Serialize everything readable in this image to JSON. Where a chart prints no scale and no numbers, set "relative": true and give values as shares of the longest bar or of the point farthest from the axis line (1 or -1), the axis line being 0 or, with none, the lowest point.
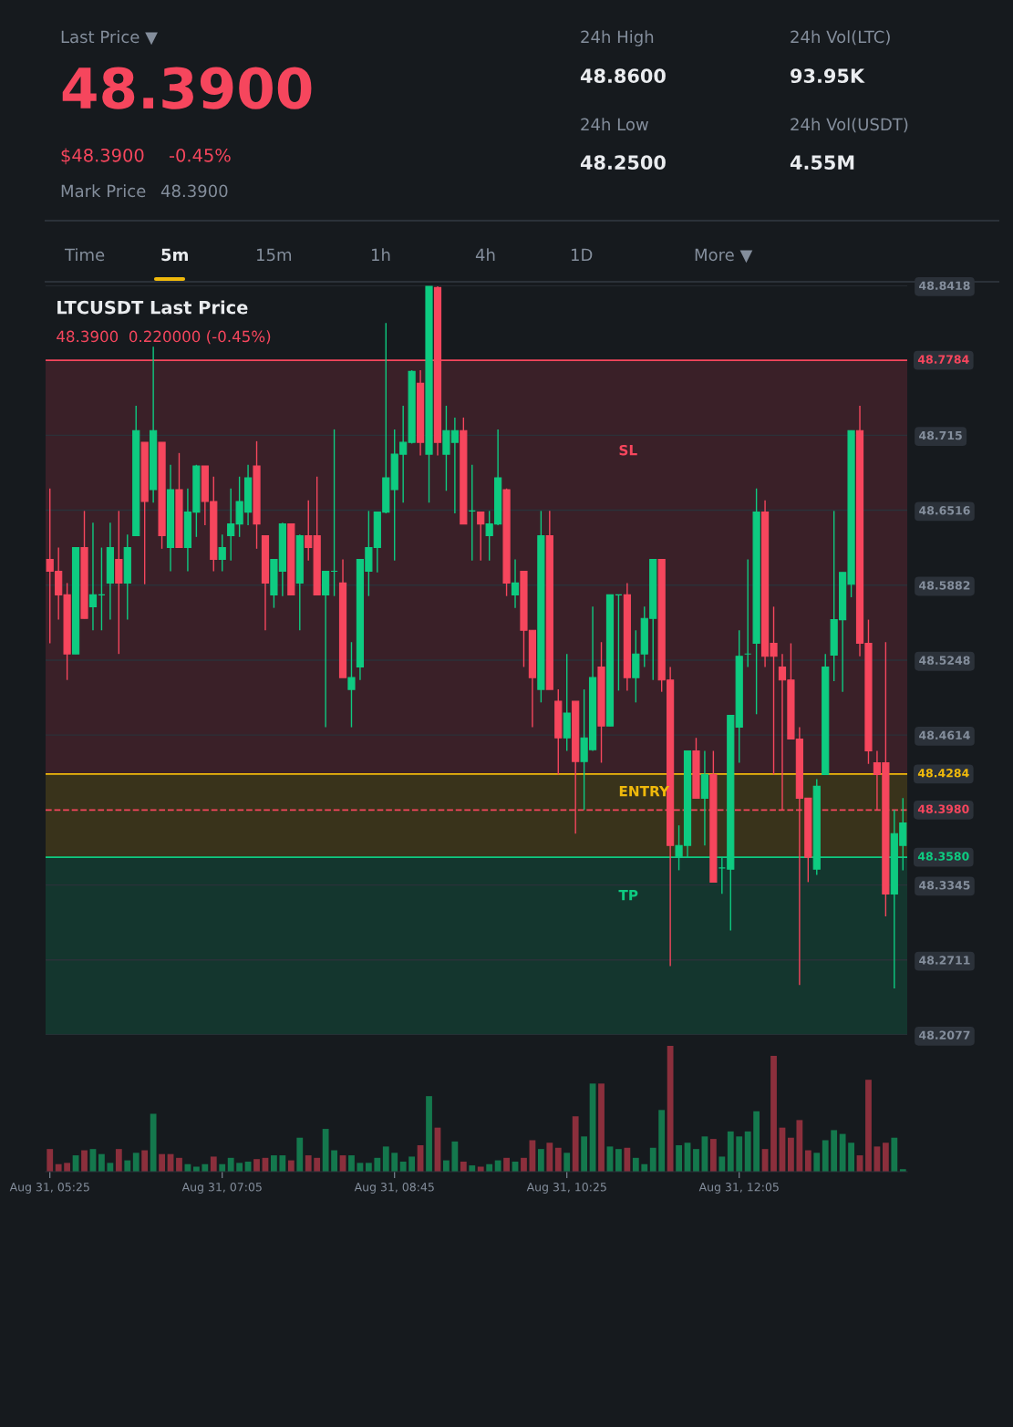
{
  "chart_data": [
    {
      "type": "other",
      "annotations": [
        "Last Price ▼",
        "48.3900",
        "$48.3900",
        "-0.45%",
        "Mark Price",
        "48.3900",
        "24h High",
        "48.8600",
        "24h Low",
        "48.2500",
        "24h Vol(LTC)",
        "93.95K",
        "24h Vol(USDT)",
        "4.55M",
        "Time",
        "5m",
        "15m",
        "1h",
        "4h",
        "1D",
        "More ▼"
      ]
    },
    {
      "type": "candlestick",
      "title": "LTCUSDT Last Price",
      "subtitle": "48.3900  0.220000 (-0.45%)",
      "tick_labels": "y",
      "grid": "y",
      "colors": [
        "#f6465d",
        "#f6465d",
        "#f6465d",
        "#0ecb81",
        "#f6465d",
        "#0ecb81",
        "#0ecb81",
        "#0ecb81",
        "#f6465d",
        "#0ecb81",
        "#0ecb81",
        "#f6465d",
        "#0ecb81",
        "#f6465d",
        "#0ecb81",
        "#f6465d",
        "#0ecb81",
        "#0ecb81",
        "#f6465d",
        "#f6465d",
        "#0ecb81",
        "#0ecb81",
        "#0ecb81",
        "#0ecb81",
        "#f6465d",
        "#f6465d",
        "#0ecb81",
        "#0ecb81",
        "#f6465d",
        "#0ecb81",
        "#f6465d",
        "#f6465d",
        "#0ecb81",
        "#0ecb81",
        "#f6465d",
        "#0ecb81",
        "#0ecb81",
        "#0ecb81",
        "#0ecb81",
        "#0ecb81",
        "#0ecb81",
        "#0ecb81",
        "#0ecb81",
        "#f6465d",
        "#0ecb81",
        "#f6465d",
        "#0ecb81",
        "#0ecb81",
        "#f6465d",
        "#0ecb81",
        "#f6465d",
        "#0ecb81",
        "#0ecb81",
        "#f6465d",
        "#0ecb81",
        "#f6465d",
        "#f6465d",
        "#0ecb81",
        "#f6465d",
        "#f6465d",
        "#0ecb81",
        "#f6465d",
        "#0ecb81",
        "#0ecb81",
        "#f6465d",
        "#0ecb81",
        "#0ecb81",
        "#f6465d",
        "#0ecb81",
        "#0ecb81",
        "#0ecb81",
        "#f6465d",
        "#f6465d",
        "#0ecb81",
        "#0ecb81",
        "#f6465d",
        "#0ecb81",
        "#f6465d",
        "#0ecb81",
        "#0ecb81",
        "#0ecb81",
        "#0ecb81",
        "#0ecb81",
        "#f6465d",
        "#f6465d",
        "#f6465d",
        "#f6465d",
        "#f6465d",
        "#f6465d",
        "#0ecb81",
        "#0ecb81",
        "#0ecb81",
        "#0ecb81",
        "#0ecb81",
        "#f6465d",
        "#f6465d",
        "#f6465d",
        "#f6465d",
        "#0ecb81",
        "#0ecb81"
      ],
      "ylim": [
        48.2077,
        48.8418
      ],
      "yticks": [
        48.8418,
        48.715,
        48.6516,
        48.5882,
        48.5248,
        48.4614,
        48.3345,
        48.2711,
        48.2077
      ],
      "categories": [
        null,
        null,
        null,
        null,
        null,
        null,
        null,
        null,
        null,
        null,
        null,
        null,
        null,
        null,
        null,
        null,
        null,
        null,
        null,
        null,
        null,
        null,
        null,
        null,
        null,
        null,
        null,
        null,
        null,
        null,
        null,
        null,
        null,
        null,
        null,
        null,
        null,
        null,
        null,
        null,
        null,
        null,
        null,
        null,
        null,
        null,
        null,
        null,
        null,
        null,
        null,
        null,
        null,
        null,
        null,
        null,
        null,
        null,
        null,
        null,
        null,
        null,
        null,
        null,
        null,
        null,
        null,
        null,
        null,
        null,
        null,
        null,
        null,
        null,
        null,
        null,
        null,
        null,
        null,
        null,
        null,
        null,
        null,
        null,
        null,
        null,
        null,
        null,
        null,
        null,
        null,
        null,
        null,
        null,
        null,
        null,
        null,
        null,
        null,
        null
      ],
      "ohlc": [
        [
          48.61,
          48.67,
          48.539,
          48.6
        ],
        [
          48.6,
          48.62,
          48.559,
          48.58
        ],
        [
          48.58,
          48.59,
          48.508,
          48.53
        ],
        [
          48.53,
          48.62,
          48.53,
          48.62
        ],
        [
          48.62,
          48.651,
          48.56,
          48.56
        ],
        [
          48.57,
          48.641,
          48.55,
          48.58
        ],
        [
          48.58,
          48.62,
          48.55,
          48.58
        ],
        [
          48.59,
          48.641,
          48.559,
          48.62
        ],
        [
          48.61,
          48.651,
          48.53,
          48.59
        ],
        [
          48.59,
          48.631,
          48.559,
          48.62
        ],
        [
          48.63,
          48.74,
          48.63,
          48.719
        ],
        [
          48.709,
          48.709,
          48.589,
          48.659
        ],
        [
          48.669,
          48.79,
          48.658,
          48.719
        ],
        [
          48.709,
          48.709,
          48.619,
          48.63
        ],
        [
          48.62,
          48.69,
          48.6,
          48.669
        ],
        [
          48.669,
          48.7,
          48.62,
          48.62
        ],
        [
          48.62,
          48.67,
          48.6,
          48.65
        ],
        [
          48.65,
          48.69,
          48.629,
          48.689
        ],
        [
          48.689,
          48.689,
          48.639,
          48.659
        ],
        [
          48.659,
          48.68,
          48.6,
          48.61
        ],
        [
          48.61,
          48.631,
          48.6,
          48.62
        ],
        [
          48.63,
          48.67,
          48.609,
          48.64
        ],
        [
          48.64,
          48.68,
          48.629,
          48.659
        ],
        [
          48.65,
          48.69,
          48.639,
          48.679
        ],
        [
          48.689,
          48.71,
          48.619,
          48.64
        ],
        [
          48.63,
          48.63,
          48.55,
          48.59
        ],
        [
          48.58,
          48.61,
          48.569,
          48.61
        ],
        [
          48.6,
          48.641,
          48.579,
          48.64
        ],
        [
          48.64,
          48.64,
          48.58,
          48.58
        ],
        [
          48.59,
          48.631,
          48.55,
          48.63
        ],
        [
          48.63,
          48.66,
          48.609,
          48.62
        ],
        [
          48.63,
          48.68,
          48.58,
          48.58
        ],
        [
          48.58,
          48.6,
          48.468,
          48.6
        ],
        [
          48.6,
          48.72,
          48.579,
          48.6
        ],
        [
          48.59,
          48.61,
          48.51,
          48.51
        ],
        [
          48.5,
          48.54,
          48.468,
          48.51
        ],
        [
          48.519,
          48.61,
          48.508,
          48.61
        ],
        [
          48.6,
          48.651,
          48.579,
          48.62
        ],
        [
          48.62,
          48.65,
          48.599,
          48.65
        ],
        [
          48.65,
          48.81,
          48.649,
          48.679
        ],
        [
          48.669,
          48.72,
          48.609,
          48.699
        ],
        [
          48.699,
          48.74,
          48.658,
          48.709
        ],
        [
          48.709,
          48.77,
          48.708,
          48.769
        ],
        [
          48.759,
          48.77,
          48.698,
          48.709
        ],
        [
          48.699,
          48.841,
          48.658,
          48.841
        ],
        [
          48.84,
          48.841,
          48.698,
          48.709
        ],
        [
          48.699,
          48.74,
          48.668,
          48.719
        ],
        [
          48.709,
          48.73,
          48.649,
          48.719
        ],
        [
          48.719,
          48.73,
          48.64,
          48.64
        ],
        [
          48.651,
          48.69,
          48.609,
          48.651
        ],
        [
          48.65,
          48.65,
          48.609,
          48.64
        ],
        [
          48.63,
          48.651,
          48.609,
          48.64
        ],
        [
          48.64,
          48.72,
          48.639,
          48.679
        ],
        [
          48.669,
          48.67,
          48.579,
          48.59
        ],
        [
          48.58,
          48.61,
          48.569,
          48.59
        ],
        [
          48.6,
          48.6,
          48.519,
          48.55
        ],
        [
          48.55,
          48.55,
          48.468,
          48.51
        ],
        [
          48.5,
          48.651,
          48.489,
          48.63
        ],
        [
          48.63,
          48.651,
          48.5,
          48.5
        ],
        [
          48.49,
          48.5,
          48.428,
          48.459
        ],
        [
          48.459,
          48.53,
          48.448,
          48.48
        ],
        [
          48.49,
          48.49,
          48.378,
          48.439
        ],
        [
          48.439,
          48.5,
          48.398,
          48.459
        ],
        [
          48.449,
          48.57,
          48.448,
          48.51
        ],
        [
          48.519,
          48.54,
          48.438,
          48.469
        ],
        [
          48.469,
          48.58,
          48.469,
          48.58
        ],
        [
          48.58,
          48.58,
          48.499,
          48.58
        ],
        [
          48.58,
          48.59,
          48.499,
          48.51
        ],
        [
          48.51,
          48.55,
          48.489,
          48.53
        ],
        [
          48.53,
          48.57,
          48.519,
          48.56
        ],
        [
          48.56,
          48.61,
          48.508,
          48.61
        ],
        [
          48.61,
          48.61,
          48.498,
          48.508
        ],
        [
          48.508,
          48.519,
          48.266,
          48.368
        ],
        [
          48.358,
          48.385,
          48.347,
          48.368
        ],
        [
          48.368,
          48.448,
          48.358,
          48.448
        ],
        [
          48.448,
          48.459,
          48.408,
          48.408
        ],
        [
          48.408,
          48.448,
          48.368,
          48.428
        ],
        [
          48.428,
          48.448,
          48.337,
          48.337
        ],
        [
          48.349,
          48.358,
          48.327,
          48.349
        ],
        [
          48.348,
          48.478,
          48.296,
          48.478
        ],
        [
          48.468,
          48.55,
          48.438,
          48.528
        ],
        [
          48.53,
          48.61,
          48.519,
          48.53
        ],
        [
          48.539,
          48.67,
          48.479,
          48.65
        ],
        [
          48.65,
          48.66,
          48.519,
          48.528
        ],
        [
          48.539,
          48.57,
          48.428,
          48.528
        ],
        [
          48.519,
          48.53,
          48.398,
          48.508
        ],
        [
          48.508,
          48.539,
          48.458,
          48.458
        ],
        [
          48.458,
          48.468,
          48.25,
          48.408
        ],
        [
          48.408,
          48.408,
          48.337,
          48.358
        ],
        [
          48.348,
          48.424,
          48.343,
          48.418
        ],
        [
          48.428,
          48.53,
          48.428,
          48.519
        ],
        [
          48.529,
          48.651,
          48.507,
          48.559
        ],
        [
          48.559,
          48.599,
          48.498,
          48.599
        ],
        [
          48.589,
          48.719,
          48.578,
          48.719
        ],
        [
          48.719,
          48.74,
          48.528,
          48.539
        ],
        [
          48.539,
          48.559,
          48.437,
          48.448
        ],
        [
          48.438,
          48.448,
          48.398,
          48.428
        ],
        [
          48.438,
          48.54,
          48.308,
          48.327
        ],
        [
          48.327,
          48.398,
          48.247,
          48.378
        ],
        [
          48.368,
          48.408,
          48.347,
          48.387
        ]
      ],
      "bands": [
        {
          "axis": "y",
          "from": 48.4284,
          "to": 48.7784,
          "label": "SL",
          "color": "#f6465d"
        },
        {
          "axis": "y",
          "from": 48.358,
          "to": 48.4284,
          "label": "ENTRY",
          "color": "#f0b90b"
        },
        {
          "axis": "y",
          "from": 48.2077,
          "to": 48.358,
          "label": "TP",
          "color": "#0ecb81"
        }
      ],
      "ref_lines": [
        {
          "axis": "y",
          "value": 48.7784,
          "label": "48.7784",
          "color": "#f6465d",
          "line_style": "solid"
        },
        {
          "axis": "y",
          "value": 48.4284,
          "label": "48.4284",
          "color": "#f0b90b",
          "line_style": "solid"
        },
        {
          "axis": "y",
          "value": 48.358,
          "label": "48.3580",
          "color": "#0ecb81",
          "line_style": "solid"
        },
        {
          "axis": "y",
          "value": 48.398,
          "label": "48.3980",
          "color": "#f6465d",
          "line_style": "dashed"
        }
      ]
    },
    {
      "type": "bar",
      "relative": true,
      "tick_labels": "x",
      "categories": [
        "Aug 31, 05:25",
        null,
        null,
        null,
        null,
        null,
        null,
        null,
        null,
        null,
        null,
        null,
        null,
        null,
        null,
        null,
        null,
        null,
        null,
        null,
        "Aug 31, 07:05",
        null,
        null,
        null,
        null,
        null,
        null,
        null,
        null,
        null,
        null,
        null,
        null,
        null,
        null,
        null,
        null,
        null,
        null,
        null,
        "Aug 31, 08:45",
        null,
        null,
        null,
        null,
        null,
        null,
        null,
        null,
        null,
        null,
        null,
        null,
        null,
        null,
        null,
        null,
        null,
        null,
        null,
        "Aug 31, 10:25",
        null,
        null,
        null,
        null,
        null,
        null,
        null,
        null,
        null,
        null,
        null,
        null,
        null,
        null,
        null,
        null,
        null,
        null,
        null,
        "Aug 31, 12:05",
        null,
        null,
        null,
        null,
        null,
        null,
        null,
        null,
        null,
        null,
        null,
        null,
        null,
        null,
        null,
        null,
        null,
        null,
        null
      ],
      "values": [
        0.18,
        0.06,
        0.07,
        0.13,
        0.17,
        0.18,
        0.14,
        0.07,
        0.18,
        0.09,
        0.15,
        0.17,
        0.46,
        0.14,
        0.14,
        0.11,
        0.06,
        0.04,
        0.06,
        0.12,
        0.06,
        0.11,
        0.07,
        0.08,
        0.1,
        0.11,
        0.13,
        0.13,
        0.09,
        0.27,
        0.13,
        0.11,
        0.34,
        0.17,
        0.13,
        0.13,
        0.07,
        0.07,
        0.11,
        0.2,
        0.15,
        0.08,
        0.12,
        0.21,
        0.6,
        0.35,
        0.09,
        0.24,
        0.08,
        0.05,
        0.04,
        0.06,
        0.09,
        0.11,
        0.08,
        0.11,
        0.25,
        0.18,
        0.23,
        0.19,
        0.15,
        0.44,
        0.28,
        0.7,
        0.7,
        0.2,
        0.18,
        0.19,
        0.11,
        0.06,
        0.19,
        0.49,
        1,
        0.21,
        0.23,
        0.18,
        0.28,
        0.26,
        0.12,
        0.32,
        0.28,
        0.32,
        0.48,
        0.18,
        0.92,
        0.35,
        0.27,
        0.41,
        0.17,
        0.15,
        0.25,
        0.33,
        0.3,
        0.23,
        0.13,
        0.73,
        0.2,
        0.23,
        0.27,
        0.02
      ],
      "colors": [
        "#8b2f3c",
        "#8b2f3c",
        "#8b2f3c",
        "#14784d",
        "#8b2f3c",
        "#14784d",
        "#14784d",
        "#14784d",
        "#8b2f3c",
        "#14784d",
        "#14784d",
        "#8b2f3c",
        "#14784d",
        "#8b2f3c",
        "#8b2f3c",
        "#8b2f3c",
        "#14784d",
        "#14784d",
        "#14784d",
        "#8b2f3c",
        "#14784d",
        "#14784d",
        "#14784d",
        "#14784d",
        "#8b2f3c",
        "#8b2f3c",
        "#14784d",
        "#14784d",
        "#8b2f3c",
        "#14784d",
        "#8b2f3c",
        "#8b2f3c",
        "#14784d",
        "#14784d",
        "#8b2f3c",
        "#14784d",
        "#14784d",
        "#14784d",
        "#14784d",
        "#14784d",
        "#14784d",
        "#14784d",
        "#14784d",
        "#8b2f3c",
        "#14784d",
        "#8b2f3c",
        "#14784d",
        "#14784d",
        "#8b2f3c",
        "#14784d",
        "#8b2f3c",
        "#14784d",
        "#14784d",
        "#8b2f3c",
        "#14784d",
        "#8b2f3c",
        "#8b2f3c",
        "#14784d",
        "#8b2f3c",
        "#8b2f3c",
        "#14784d",
        "#8b2f3c",
        "#14784d",
        "#14784d",
        "#8b2f3c",
        "#14784d",
        "#14784d",
        "#8b2f3c",
        "#14784d",
        "#14784d",
        "#14784d",
        "#14784d",
        "#8b2f3c",
        "#14784d",
        "#14784d",
        "#14784d",
        "#14784d",
        "#8b2f3c",
        "#14784d",
        "#14784d",
        "#14784d",
        "#14784d",
        "#14784d",
        "#8b2f3c",
        "#8b2f3c",
        "#8b2f3c",
        "#8b2f3c",
        "#8b2f3c",
        "#8b2f3c",
        "#14784d",
        "#14784d",
        "#14784d",
        "#14784d",
        "#14784d",
        "#8b2f3c",
        "#8b2f3c",
        "#8b2f3c",
        "#8b2f3c",
        "#14784d",
        "#14784d"
      ]
    }
  ]
}
